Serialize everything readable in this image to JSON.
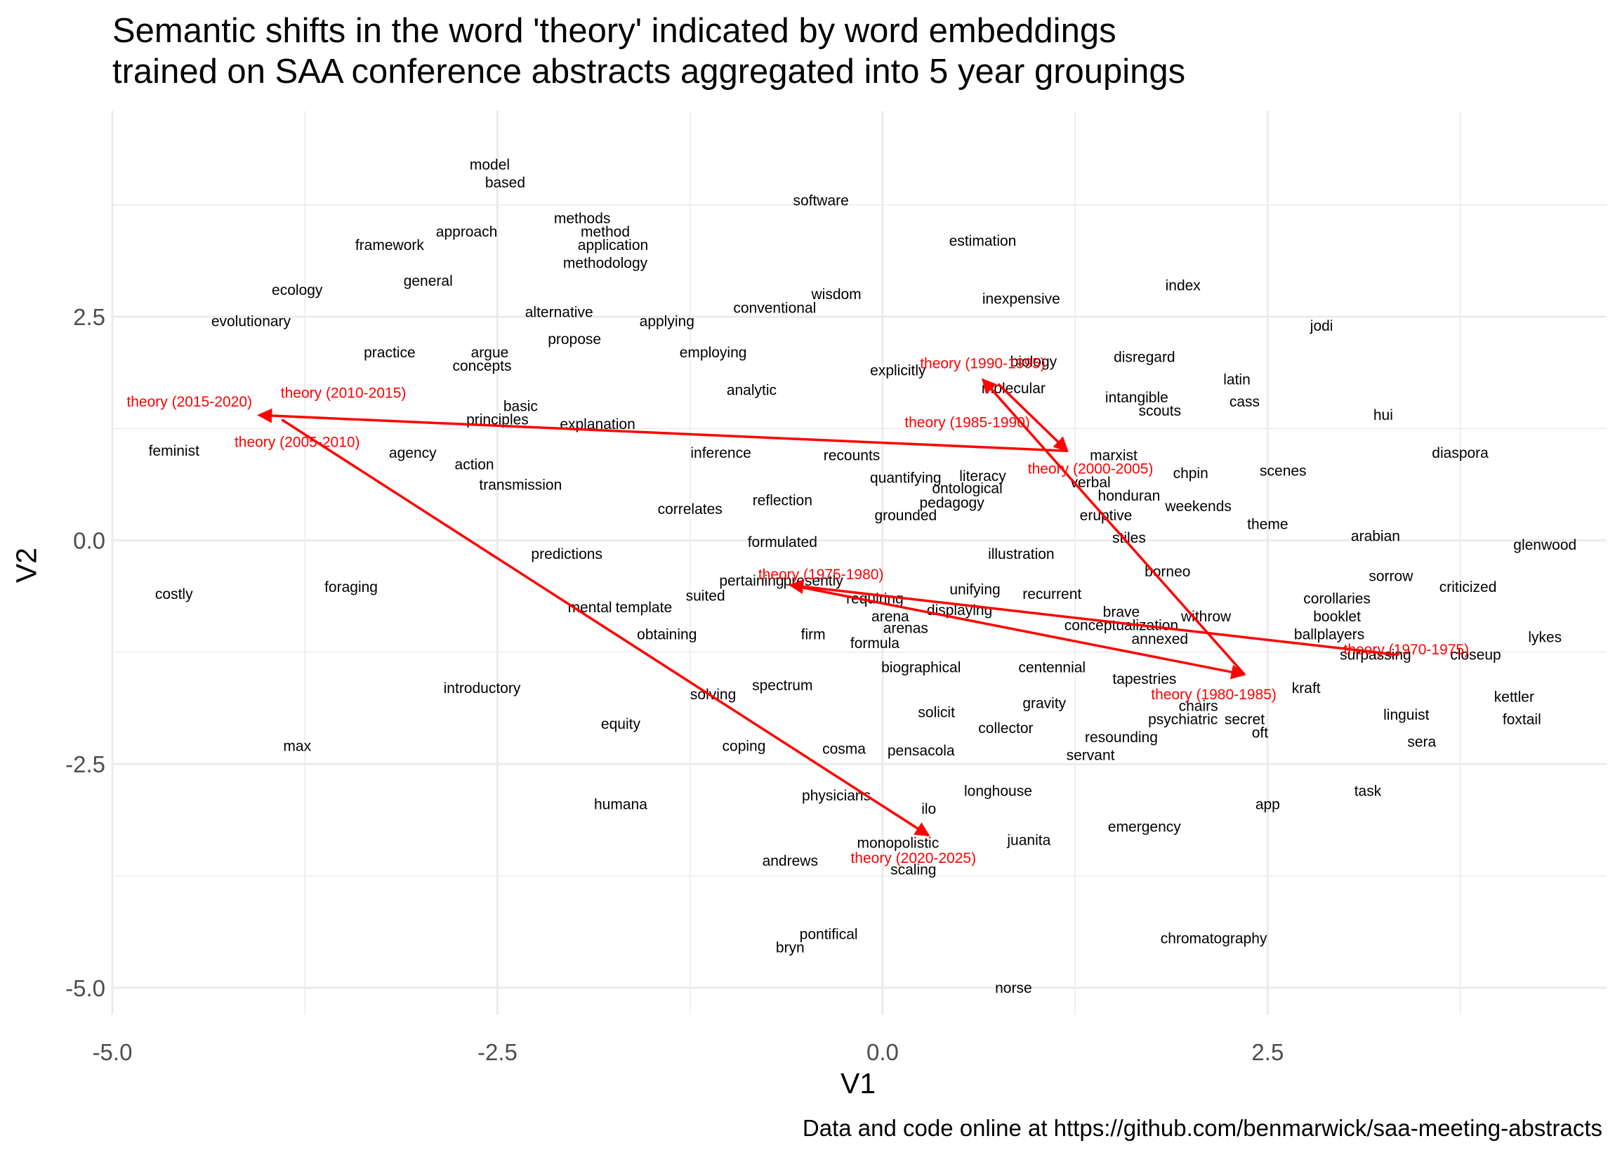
{
  "chart_data": {
    "type": "scatter",
    "title_lines": [
      "Semantic shifts in the word 'theory' indicated by word embeddings",
      "trained on SAA conference abstracts aggregated into 5 year groupings"
    ],
    "caption": "Data and code online at https://github.com/benmarwick/saa-meeting-abstracts",
    "xlabel": "V1",
    "ylabel": "V2",
    "xlim": [
      -5.0,
      4.7
    ],
    "ylim": [
      -5.3,
      4.8
    ],
    "x_ticks": [
      -5.0,
      -2.5,
      0.0,
      2.5
    ],
    "x_tick_labels": [
      "-5.0",
      "-2.5",
      "0.0",
      "2.5"
    ],
    "y_ticks": [
      -5.0,
      -2.5,
      0.0,
      2.5
    ],
    "y_tick_labels": [
      "-5.0",
      "-2.5",
      "0.0",
      "2.5"
    ],
    "grid": true,
    "words": [
      {
        "label": "model",
        "x": -2.55,
        "y": 4.2
      },
      {
        "label": "based",
        "x": -2.45,
        "y": 4.0
      },
      {
        "label": "software",
        "x": -0.4,
        "y": 3.8
      },
      {
        "label": "methods",
        "x": -1.95,
        "y": 3.6
      },
      {
        "label": "method",
        "x": -1.8,
        "y": 3.45
      },
      {
        "label": "approach",
        "x": -2.7,
        "y": 3.45
      },
      {
        "label": "estimation",
        "x": 0.65,
        "y": 3.35
      },
      {
        "label": "framework",
        "x": -3.2,
        "y": 3.3
      },
      {
        "label": "application",
        "x": -1.75,
        "y": 3.3
      },
      {
        "label": "methodology",
        "x": -1.8,
        "y": 3.1
      },
      {
        "label": "general",
        "x": -2.95,
        "y": 2.9
      },
      {
        "label": "index",
        "x": 1.95,
        "y": 2.85
      },
      {
        "label": "ecology",
        "x": -3.8,
        "y": 2.8
      },
      {
        "label": "wisdom",
        "x": -0.3,
        "y": 2.75
      },
      {
        "label": "inexpensive",
        "x": 0.9,
        "y": 2.7
      },
      {
        "label": "conventional",
        "x": -0.7,
        "y": 2.6
      },
      {
        "label": "alternative",
        "x": -2.1,
        "y": 2.55
      },
      {
        "label": "evolutionary",
        "x": -4.1,
        "y": 2.45
      },
      {
        "label": "applying",
        "x": -1.4,
        "y": 2.45
      },
      {
        "label": "jodi",
        "x": 2.85,
        "y": 2.4
      },
      {
        "label": "propose",
        "x": -2.0,
        "y": 2.25
      },
      {
        "label": "practice",
        "x": -3.2,
        "y": 2.1
      },
      {
        "label": "argue",
        "x": -2.55,
        "y": 2.1
      },
      {
        "label": "employing",
        "x": -1.1,
        "y": 2.1
      },
      {
        "label": "biology",
        "x": 0.98,
        "y": 2.0
      },
      {
        "label": "disregard",
        "x": 1.7,
        "y": 2.05
      },
      {
        "label": "concepts",
        "x": -2.6,
        "y": 1.95
      },
      {
        "label": "explicitly",
        "x": 0.1,
        "y": 1.9
      },
      {
        "label": "latin",
        "x": 2.3,
        "y": 1.8
      },
      {
        "label": "molecular",
        "x": 0.85,
        "y": 1.7
      },
      {
        "label": "analytic",
        "x": -0.85,
        "y": 1.68
      },
      {
        "label": "intangible",
        "x": 1.65,
        "y": 1.6
      },
      {
        "label": "cass",
        "x": 2.35,
        "y": 1.55
      },
      {
        "label": "basic",
        "x": -2.35,
        "y": 1.5
      },
      {
        "label": "scouts",
        "x": 1.8,
        "y": 1.45
      },
      {
        "label": "hui",
        "x": 3.25,
        "y": 1.4
      },
      {
        "label": "principles",
        "x": -2.5,
        "y": 1.35
      },
      {
        "label": "explanation",
        "x": -1.85,
        "y": 1.3
      },
      {
        "label": "feminist",
        "x": -4.6,
        "y": 1.0
      },
      {
        "label": "agency",
        "x": -3.05,
        "y": 0.98
      },
      {
        "label": "inference",
        "x": -1.05,
        "y": 0.98
      },
      {
        "label": "recounts",
        "x": -0.2,
        "y": 0.95
      },
      {
        "label": "marxist",
        "x": 1.5,
        "y": 0.95
      },
      {
        "label": "diaspora",
        "x": 3.75,
        "y": 0.98
      },
      {
        "label": "action",
        "x": -2.65,
        "y": 0.85
      },
      {
        "label": "chpin",
        "x": 2.0,
        "y": 0.75
      },
      {
        "label": "scenes",
        "x": 2.6,
        "y": 0.78
      },
      {
        "label": "literacy",
        "x": 0.65,
        "y": 0.72
      },
      {
        "label": "quantifying",
        "x": 0.15,
        "y": 0.7
      },
      {
        "label": "verbal",
        "x": 1.35,
        "y": 0.65
      },
      {
        "label": "transmission",
        "x": -2.35,
        "y": 0.62
      },
      {
        "label": "ontological",
        "x": 0.55,
        "y": 0.58
      },
      {
        "label": "honduran",
        "x": 1.6,
        "y": 0.5
      },
      {
        "label": "reflection",
        "x": -0.65,
        "y": 0.45
      },
      {
        "label": "pedagogy",
        "x": 0.45,
        "y": 0.42
      },
      {
        "label": "weekends",
        "x": 2.05,
        "y": 0.38
      },
      {
        "label": "correlates",
        "x": -1.25,
        "y": 0.35
      },
      {
        "label": "grounded",
        "x": 0.15,
        "y": 0.28
      },
      {
        "label": "eruptive",
        "x": 1.45,
        "y": 0.28
      },
      {
        "label": "theme",
        "x": 2.5,
        "y": 0.18
      },
      {
        "label": "arabian",
        "x": 3.2,
        "y": 0.05
      },
      {
        "label": "stiles",
        "x": 1.6,
        "y": 0.03
      },
      {
        "label": "formulated",
        "x": -0.65,
        "y": -0.02
      },
      {
        "label": "glenwood",
        "x": 4.3,
        "y": -0.05
      },
      {
        "label": "illustration",
        "x": 0.9,
        "y": -0.15
      },
      {
        "label": "predictions",
        "x": -2.05,
        "y": -0.15
      },
      {
        "label": "borneo",
        "x": 1.85,
        "y": -0.35
      },
      {
        "label": "pertaining",
        "x": -0.85,
        "y": -0.45
      },
      {
        "label": "presently",
        "x": -0.45,
        "y": -0.45
      },
      {
        "label": "sorrow",
        "x": 3.3,
        "y": -0.4
      },
      {
        "label": "criticized",
        "x": 3.8,
        "y": -0.52
      },
      {
        "label": "foraging",
        "x": -3.45,
        "y": -0.52
      },
      {
        "label": "costly",
        "x": -4.6,
        "y": -0.6
      },
      {
        "label": "unifying",
        "x": 0.6,
        "y": -0.55
      },
      {
        "label": "recurrent",
        "x": 1.1,
        "y": -0.6
      },
      {
        "label": "suited",
        "x": -1.15,
        "y": -0.62
      },
      {
        "label": "requiring",
        "x": -0.05,
        "y": -0.65
      },
      {
        "label": "corollaries",
        "x": 2.95,
        "y": -0.65
      },
      {
        "label": "mental",
        "x": -1.9,
        "y": -0.75
      },
      {
        "label": "template",
        "x": -1.55,
        "y": -0.75
      },
      {
        "label": "displaying",
        "x": 0.5,
        "y": -0.78
      },
      {
        "label": "arena",
        "x": 0.05,
        "y": -0.85
      },
      {
        "label": "brave",
        "x": 1.55,
        "y": -0.8
      },
      {
        "label": "withrow",
        "x": 2.1,
        "y": -0.85
      },
      {
        "label": "booklet",
        "x": 2.95,
        "y": -0.85
      },
      {
        "label": "conceptualization",
        "x": 1.55,
        "y": -0.95
      },
      {
        "label": "arenas",
        "x": 0.15,
        "y": -0.98
      },
      {
        "label": "ballplayers",
        "x": 2.9,
        "y": -1.05
      },
      {
        "label": "obtaining",
        "x": -1.4,
        "y": -1.05
      },
      {
        "label": "firm",
        "x": -0.45,
        "y": -1.05
      },
      {
        "label": "annexed",
        "x": 1.8,
        "y": -1.1
      },
      {
        "label": "lykes",
        "x": 4.3,
        "y": -1.08
      },
      {
        "label": "formula",
        "x": -0.05,
        "y": -1.15
      },
      {
        "label": "surpassing",
        "x": 3.2,
        "y": -1.28
      },
      {
        "label": "closeup",
        "x": 3.85,
        "y": -1.28
      },
      {
        "label": "biographical",
        "x": 0.25,
        "y": -1.42
      },
      {
        "label": "centennial",
        "x": 1.1,
        "y": -1.42
      },
      {
        "label": "tapestries",
        "x": 1.7,
        "y": -1.55
      },
      {
        "label": "spectrum",
        "x": -0.65,
        "y": -1.62
      },
      {
        "label": "kraft",
        "x": 2.75,
        "y": -1.65
      },
      {
        "label": "introductory",
        "x": -2.6,
        "y": -1.65
      },
      {
        "label": "solving",
        "x": -1.1,
        "y": -1.72
      },
      {
        "label": "kettler",
        "x": 4.1,
        "y": -1.75
      },
      {
        "label": "gravity",
        "x": 1.05,
        "y": -1.82
      },
      {
        "label": "chairs",
        "x": 2.05,
        "y": -1.85
      },
      {
        "label": "solicit",
        "x": 0.35,
        "y": -1.92
      },
      {
        "label": "linguist",
        "x": 3.4,
        "y": -1.95
      },
      {
        "label": "psychiatric",
        "x": 1.95,
        "y": -2.0
      },
      {
        "label": "secret",
        "x": 2.35,
        "y": -2.0
      },
      {
        "label": "foxtail",
        "x": 4.15,
        "y": -2.0
      },
      {
        "label": "equity",
        "x": -1.7,
        "y": -2.05
      },
      {
        "label": "collector",
        "x": 0.8,
        "y": -2.1
      },
      {
        "label": "oft",
        "x": 2.45,
        "y": -2.15
      },
      {
        "label": "resounding",
        "x": 1.55,
        "y": -2.2
      },
      {
        "label": "sera",
        "x": 3.5,
        "y": -2.25
      },
      {
        "label": "max",
        "x": -3.8,
        "y": -2.3
      },
      {
        "label": "coping",
        "x": -0.9,
        "y": -2.3
      },
      {
        "label": "cosma",
        "x": -0.25,
        "y": -2.33
      },
      {
        "label": "pensacola",
        "x": 0.25,
        "y": -2.35
      },
      {
        "label": "servant",
        "x": 1.35,
        "y": -2.4
      },
      {
        "label": "longhouse",
        "x": 0.75,
        "y": -2.8
      },
      {
        "label": "task",
        "x": 3.15,
        "y": -2.8
      },
      {
        "label": "physicians",
        "x": -0.3,
        "y": -2.85
      },
      {
        "label": "humana",
        "x": -1.7,
        "y": -2.95
      },
      {
        "label": "app",
        "x": 2.5,
        "y": -2.95
      },
      {
        "label": "ilo",
        "x": 0.3,
        "y": -3.0
      },
      {
        "label": "emergency",
        "x": 1.7,
        "y": -3.2
      },
      {
        "label": "juanita",
        "x": 0.95,
        "y": -3.35
      },
      {
        "label": "monopolistic",
        "x": 0.1,
        "y": -3.38
      },
      {
        "label": "andrews",
        "x": -0.6,
        "y": -3.58
      },
      {
        "label": "scaling",
        "x": 0.2,
        "y": -3.68
      },
      {
        "label": "pontifical",
        "x": -0.35,
        "y": -4.4
      },
      {
        "label": "chromatography",
        "x": 2.15,
        "y": -4.45
      },
      {
        "label": "bryn",
        "x": -0.6,
        "y": -4.55
      },
      {
        "label": "norse",
        "x": 0.85,
        "y": -5.0
      }
    ],
    "theory_points": [
      {
        "label": "theory (1970-1975)",
        "x": 3.4,
        "y": -1.22
      },
      {
        "label": "theory (1975-1980)",
        "x": -0.4,
        "y": -0.38
      },
      {
        "label": "theory (1980-1985)",
        "x": 2.15,
        "y": -1.72
      },
      {
        "label": "theory (1985-1990)",
        "x": 0.55,
        "y": 1.32
      },
      {
        "label": "theory (1990-1995)",
        "x": 0.65,
        "y": 1.98
      },
      {
        "label": "theory (2000-2005)",
        "x": 1.35,
        "y": 0.8
      },
      {
        "label": "theory (2005-2010)",
        "x": -3.8,
        "y": 1.1
      },
      {
        "label": "theory (2010-2015)",
        "x": -3.5,
        "y": 1.65
      },
      {
        "label": "theory (2015-2020)",
        "x": -4.5,
        "y": 1.55
      },
      {
        "label": "theory (2020-2025)",
        "x": 0.2,
        "y": -3.55
      }
    ],
    "arrows": [
      {
        "x0": 3.35,
        "y0": -1.28,
        "x1": -0.6,
        "y1": -0.5
      },
      {
        "x0": -0.6,
        "y0": -0.5,
        "x1": 2.35,
        "y1": -1.5
      },
      {
        "x0": 2.35,
        "y0": -1.5,
        "x1": 0.65,
        "y1": 1.8
      },
      {
        "x0": 0.75,
        "y0": 1.75,
        "x1": 1.2,
        "y1": 1.0
      },
      {
        "x0": 1.2,
        "y0": 1.0,
        "x1": -4.05,
        "y1": 1.4
      },
      {
        "x0": -3.9,
        "y0": 1.35,
        "x1": 0.3,
        "y1": -3.3
      }
    ],
    "colors": {
      "words": "#000000",
      "theory": "#ff0000",
      "grid": "#ebebeb"
    }
  }
}
